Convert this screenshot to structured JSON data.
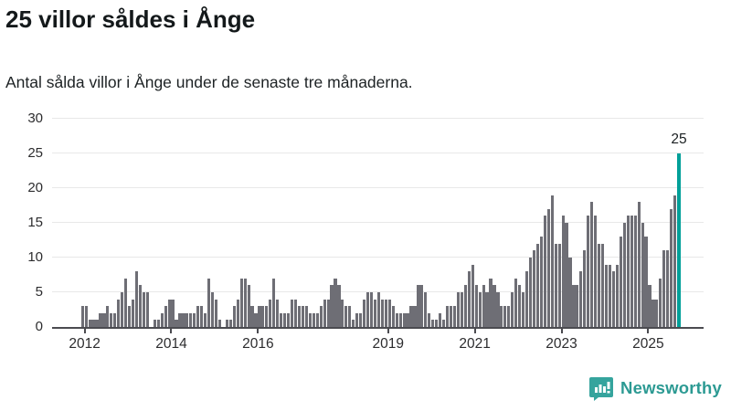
{
  "header": {
    "title": "25 villor såldes i Ånge",
    "subtitle": "Antal sålda villor i Ånge under de senaste tre månaderna."
  },
  "colors": {
    "bar": "#6e6e75",
    "highlight": "#00a099",
    "brand_teal": "#35a49d",
    "grid": "#e8e8e8",
    "axis": "#4b4b50",
    "text": "#14191b"
  },
  "chart_data": {
    "type": "bar",
    "title": "25 villor såldes i Ånge",
    "xlabel": "",
    "ylabel": "",
    "ylim": [
      0,
      30
    ],
    "grid": "horizontal",
    "y_ticks": [
      0,
      5,
      10,
      15,
      20,
      25,
      30
    ],
    "x_ticks": [
      {
        "label": "2012",
        "index": 9
      },
      {
        "label": "2014",
        "index": 33
      },
      {
        "label": "2016",
        "index": 57
      },
      {
        "label": "2019",
        "index": 93
      },
      {
        "label": "2021",
        "index": 117
      },
      {
        "label": "2023",
        "index": 141
      },
      {
        "label": "2025",
        "index": 165
      }
    ],
    "values": [
      0,
      0,
      0,
      0,
      0,
      0,
      0,
      0,
      3,
      3,
      1,
      1,
      1,
      2,
      2,
      3,
      2,
      2,
      4,
      5,
      7,
      3,
      4,
      8,
      6,
      5,
      5,
      0,
      1,
      1,
      2,
      3,
      4,
      4,
      1,
      2,
      2,
      2,
      2,
      2,
      3,
      3,
      2,
      7,
      5,
      4,
      1,
      0,
      1,
      1,
      3,
      4,
      7,
      7,
      6,
      3,
      2,
      3,
      3,
      3,
      4,
      7,
      4,
      2,
      2,
      2,
      4,
      4,
      3,
      3,
      3,
      2,
      2,
      2,
      3,
      4,
      4,
      6,
      7,
      6,
      4,
      3,
      3,
      1,
      2,
      2,
      4,
      5,
      5,
      4,
      5,
      4,
      4,
      4,
      3,
      2,
      2,
      2,
      2,
      3,
      3,
      6,
      6,
      5,
      2,
      1,
      1,
      2,
      1,
      3,
      3,
      3,
      5,
      5,
      6,
      8,
      9,
      6,
      5,
      6,
      5,
      7,
      6,
      5,
      3,
      3,
      3,
      5,
      7,
      6,
      5,
      8,
      10,
      11,
      12,
      13,
      16,
      17,
      19,
      12,
      12,
      16,
      15,
      10,
      6,
      6,
      8,
      11,
      16,
      18,
      16,
      12,
      12,
      9,
      9,
      8,
      9,
      13,
      15,
      16,
      16,
      16,
      18,
      15,
      13,
      6,
      4,
      4,
      7,
      11,
      11,
      17,
      19,
      25
    ],
    "highlight_index": 173,
    "annotation": {
      "text": "25",
      "index": 173,
      "value": 25
    },
    "legend": null
  },
  "footer": {
    "brand": "Newsworthy"
  }
}
